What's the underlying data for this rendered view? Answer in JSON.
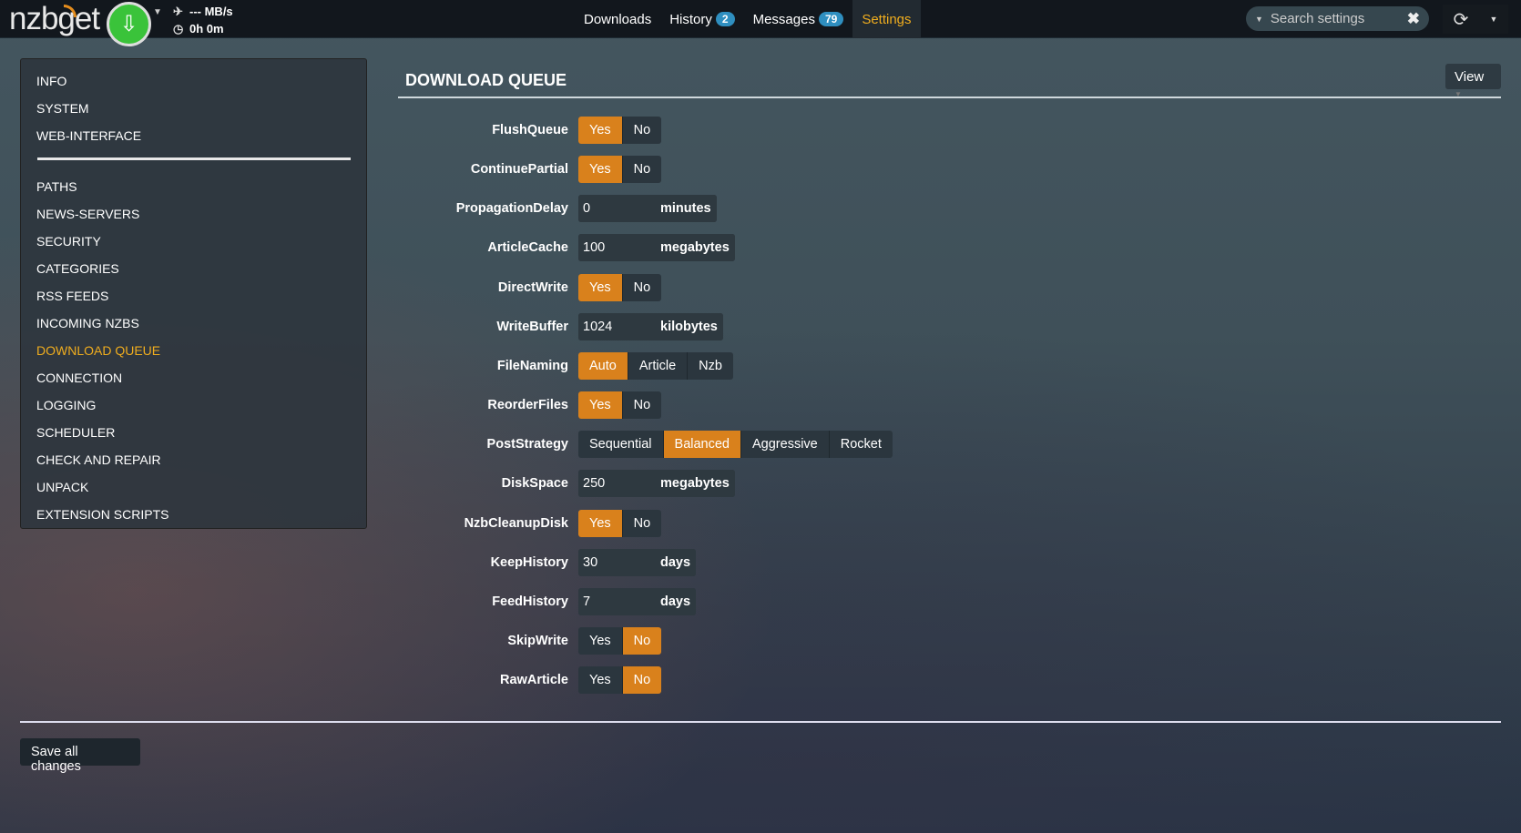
{
  "header": {
    "logo": "nzbget",
    "speed": "--- MB/s",
    "time": "0h 0m",
    "nav": [
      {
        "label": "Downloads"
      },
      {
        "label": "History",
        "badge": "2"
      },
      {
        "label": "Messages",
        "badge": "79"
      },
      {
        "label": "Settings",
        "active": true
      }
    ],
    "search_placeholder": "Search settings"
  },
  "sidebar": {
    "top": [
      "INFO",
      "SYSTEM",
      "WEB-INTERFACE"
    ],
    "items": [
      "PATHS",
      "NEWS-SERVERS",
      "SECURITY",
      "CATEGORIES",
      "RSS FEEDS",
      "INCOMING NZBS",
      "DOWNLOAD QUEUE",
      "CONNECTION",
      "LOGGING",
      "SCHEDULER",
      "CHECK AND REPAIR",
      "UNPACK",
      "EXTENSION SCRIPTS"
    ],
    "active": "DOWNLOAD QUEUE"
  },
  "section": {
    "title": "DOWNLOAD QUEUE",
    "view_label": "View"
  },
  "accent": "#d9811c",
  "options": [
    {
      "name": "FlushQueue",
      "type": "switch",
      "choices": [
        "Yes",
        "No"
      ],
      "value": "Yes"
    },
    {
      "name": "ContinuePartial",
      "type": "switch",
      "choices": [
        "Yes",
        "No"
      ],
      "value": "Yes"
    },
    {
      "name": "PropagationDelay",
      "type": "input",
      "value": "0",
      "unit": "minutes"
    },
    {
      "name": "ArticleCache",
      "type": "input",
      "value": "100",
      "unit": "megabytes"
    },
    {
      "name": "DirectWrite",
      "type": "switch",
      "choices": [
        "Yes",
        "No"
      ],
      "value": "Yes"
    },
    {
      "name": "WriteBuffer",
      "type": "input",
      "value": "1024",
      "unit": "kilobytes"
    },
    {
      "name": "FileNaming",
      "type": "switch",
      "choices": [
        "Auto",
        "Article",
        "Nzb"
      ],
      "value": "Auto"
    },
    {
      "name": "ReorderFiles",
      "type": "switch",
      "choices": [
        "Yes",
        "No"
      ],
      "value": "Yes"
    },
    {
      "name": "PostStrategy",
      "type": "switch",
      "choices": [
        "Sequential",
        "Balanced",
        "Aggressive",
        "Rocket"
      ],
      "value": "Balanced"
    },
    {
      "name": "DiskSpace",
      "type": "input",
      "value": "250",
      "unit": "megabytes"
    },
    {
      "name": "NzbCleanupDisk",
      "type": "switch",
      "choices": [
        "Yes",
        "No"
      ],
      "value": "Yes"
    },
    {
      "name": "KeepHistory",
      "type": "input",
      "value": "30",
      "unit": "days"
    },
    {
      "name": "FeedHistory",
      "type": "input",
      "value": "7",
      "unit": "days"
    },
    {
      "name": "SkipWrite",
      "type": "switch",
      "choices": [
        "Yes",
        "No"
      ],
      "value": "No"
    },
    {
      "name": "RawArticle",
      "type": "switch",
      "choices": [
        "Yes",
        "No"
      ],
      "value": "No"
    }
  ],
  "footer": {
    "save_label": "Save all changes"
  }
}
